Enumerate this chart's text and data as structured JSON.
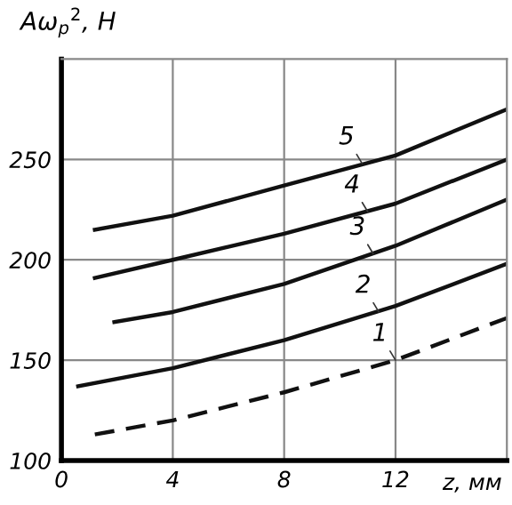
{
  "chart_data": {
    "type": "line",
    "ylabel": "Aω$_{р}$$^{2}$, Н",
    "xlabel": "z, мм",
    "xlim": [
      0,
      16
    ],
    "xticks": [
      0,
      4,
      8,
      12
    ],
    "ylim": [
      100,
      300
    ],
    "yticks": [
      100,
      150,
      200,
      250
    ],
    "grid": true,
    "legend": false,
    "series": [
      {
        "color": "#111111",
        "line_style": "dashed",
        "x": [
          1.2,
          4,
          8,
          12,
          16
        ],
        "values": [
          113,
          120,
          134,
          150,
          171
        ]
      },
      {
        "color": "#111111",
        "line_style": "solid",
        "x": [
          0.6,
          4,
          8,
          12,
          16
        ],
        "values": [
          137,
          146,
          160,
          177,
          198
        ]
      },
      {
        "color": "#111111",
        "line_style": "solid",
        "x": [
          1.9,
          4,
          8,
          12,
          16
        ],
        "values": [
          169,
          174,
          188,
          207,
          230
        ]
      },
      {
        "color": "#111111",
        "line_style": "solid",
        "x": [
          1.2,
          4,
          8,
          12,
          16
        ],
        "values": [
          191,
          200,
          213,
          228,
          250
        ]
      },
      {
        "color": "#111111",
        "line_style": "solid",
        "x": [
          1.2,
          4,
          8,
          12,
          16
        ],
        "values": [
          215,
          222,
          237,
          252,
          275
        ]
      }
    ],
    "annotations": [
      {
        "text": "1",
        "x": 12,
        "y": 150
      },
      {
        "text": "2",
        "x": 11.4,
        "y": 174
      },
      {
        "text": "3",
        "x": 11.2,
        "y": 203
      },
      {
        "text": "4",
        "x": 11,
        "y": 224
      },
      {
        "text": "5",
        "x": 10.8,
        "y": 248
      }
    ]
  }
}
